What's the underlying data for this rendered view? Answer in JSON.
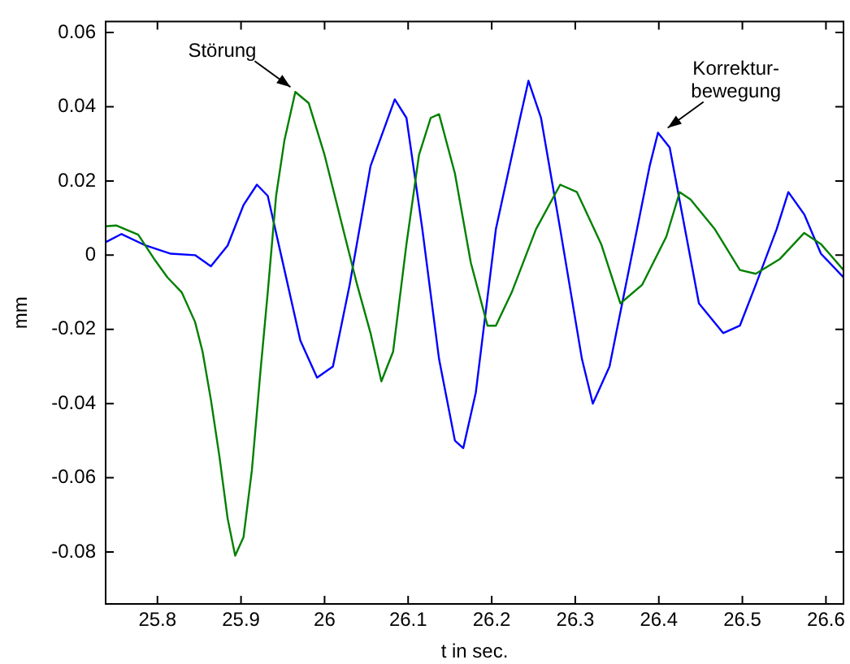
{
  "chart_data": {
    "type": "line",
    "xlabel": "t in sec.",
    "ylabel": "mm",
    "xlim": [
      25.738,
      26.621
    ],
    "xticks": [
      25.8,
      25.9,
      26,
      26.1,
      26.2,
      26.3,
      26.4,
      26.5,
      26.6
    ],
    "ylim": [
      -0.094,
      0.063
    ],
    "yticks": [
      -0.08,
      -0.06,
      -0.04,
      -0.02,
      0,
      0.02,
      0.04,
      0.06
    ],
    "grid": false,
    "legend": false,
    "marker": "none",
    "line_style": "solid",
    "annotations": [
      {
        "text": "Störung",
        "x": 25.965,
        "y": 0.044
      },
      {
        "text": "Korrektur-\nbewegung",
        "x": 26.399,
        "y": 0.033
      }
    ],
    "series": [
      {
        "color": "#008000",
        "x": [
          25.738,
          25.751,
          25.777,
          25.796,
          25.812,
          25.829,
          25.845,
          25.854,
          25.864,
          25.874,
          25.884,
          25.893,
          25.903,
          25.913,
          25.923,
          25.932,
          25.942,
          25.952,
          25.965,
          25.981,
          26.0,
          26.02,
          26.039,
          26.055,
          26.068,
          26.082,
          26.098,
          26.113,
          26.127,
          26.137,
          26.156,
          26.175,
          26.195,
          26.205,
          26.224,
          26.253,
          26.282,
          26.302,
          26.331,
          26.354,
          26.38,
          26.409,
          26.425,
          26.438,
          26.467,
          26.497,
          26.516,
          26.545,
          26.574,
          26.594,
          26.621
        ],
        "values": [
          0.0078,
          0.008,
          0.0055,
          -0.001,
          -0.006,
          -0.01,
          -0.018,
          -0.026,
          -0.039,
          -0.054,
          -0.071,
          -0.081,
          -0.076,
          -0.058,
          -0.032,
          -0.01,
          0.016,
          0.031,
          0.044,
          0.041,
          0.027,
          0.009,
          -0.008,
          -0.021,
          -0.034,
          -0.026,
          0.003,
          0.027,
          0.037,
          0.038,
          0.022,
          -0.002,
          -0.019,
          -0.019,
          -0.01,
          0.007,
          0.019,
          0.017,
          0.003,
          -0.013,
          -0.008,
          0.005,
          0.017,
          0.015,
          0.007,
          -0.004,
          -0.005,
          -0.001,
          0.006,
          0.003,
          -0.004
        ]
      },
      {
        "color": "#0000ff",
        "x": [
          25.738,
          25.757,
          25.786,
          25.816,
          25.845,
          25.864,
          25.884,
          25.903,
          25.919,
          25.932,
          25.952,
          25.971,
          25.991,
          26.01,
          26.03,
          26.055,
          26.084,
          26.098,
          26.117,
          26.137,
          26.156,
          26.166,
          26.181,
          26.205,
          26.234,
          26.244,
          26.259,
          26.282,
          26.308,
          26.321,
          26.341,
          26.37,
          26.389,
          26.399,
          26.413,
          26.428,
          26.448,
          26.477,
          26.497,
          26.516,
          26.541,
          26.555,
          26.574,
          26.594,
          26.621
        ],
        "values": [
          0.0035,
          0.0057,
          0.0026,
          0.0004,
          0,
          -0.003,
          0.0026,
          0.0135,
          0.019,
          0.016,
          -0.004,
          -0.023,
          -0.033,
          -0.03,
          -0.008,
          0.024,
          0.042,
          0.037,
          0.007,
          -0.028,
          -0.05,
          -0.052,
          -0.037,
          0.007,
          0.037,
          0.047,
          0.037,
          0.007,
          -0.028,
          -0.04,
          -0.03,
          0.0026,
          0.024,
          0.033,
          0.029,
          0.011,
          -0.013,
          -0.021,
          -0.019,
          -0.008,
          0.007,
          0.017,
          0.011,
          0.0004,
          -0.006
        ]
      }
    ]
  }
}
